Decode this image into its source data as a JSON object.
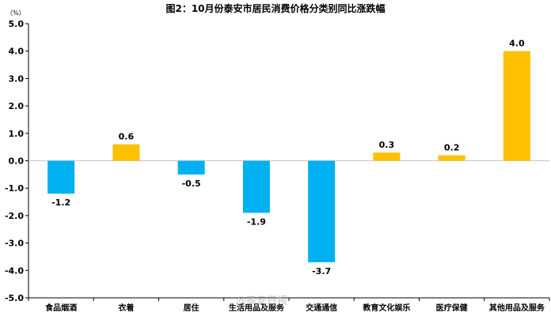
{
  "chart_data": {
    "type": "bar",
    "title": "图2：10月份泰安市居民消费价格分类别同比涨跌幅",
    "unit_label": "（%）",
    "categories": [
      "食品烟酒",
      "衣着",
      "居住",
      "生活用品及服务",
      "交通通信",
      "教育文化娱乐",
      "医疗保健",
      "其他用品及服务"
    ],
    "values": [
      -1.2,
      0.6,
      -0.5,
      -1.9,
      -3.7,
      0.3,
      0.2,
      4.0
    ],
    "data_labels": [
      "-1.2",
      "0.6",
      "-0.5",
      "-1.9",
      "-3.7",
      "0.3",
      "0.2",
      "4.0"
    ],
    "ylim": [
      -5.0,
      5.0
    ],
    "yticks": [
      "5.0",
      "4.0",
      "3.0",
      "2.0",
      "1.0",
      "0.0",
      "-1.0",
      "-2.0",
      "-3.0",
      "-4.0",
      "-5.0"
    ],
    "ytick_values": [
      5,
      4,
      3,
      2,
      1,
      0,
      -1,
      -2,
      -3,
      -4,
      -5
    ],
    "grid": false,
    "colors": {
      "positive": "#FFC000",
      "negative": "#00B0F0",
      "axis": "#000000",
      "zero_line": "#C8C8C8"
    }
  },
  "watermark": "@泰安日报"
}
